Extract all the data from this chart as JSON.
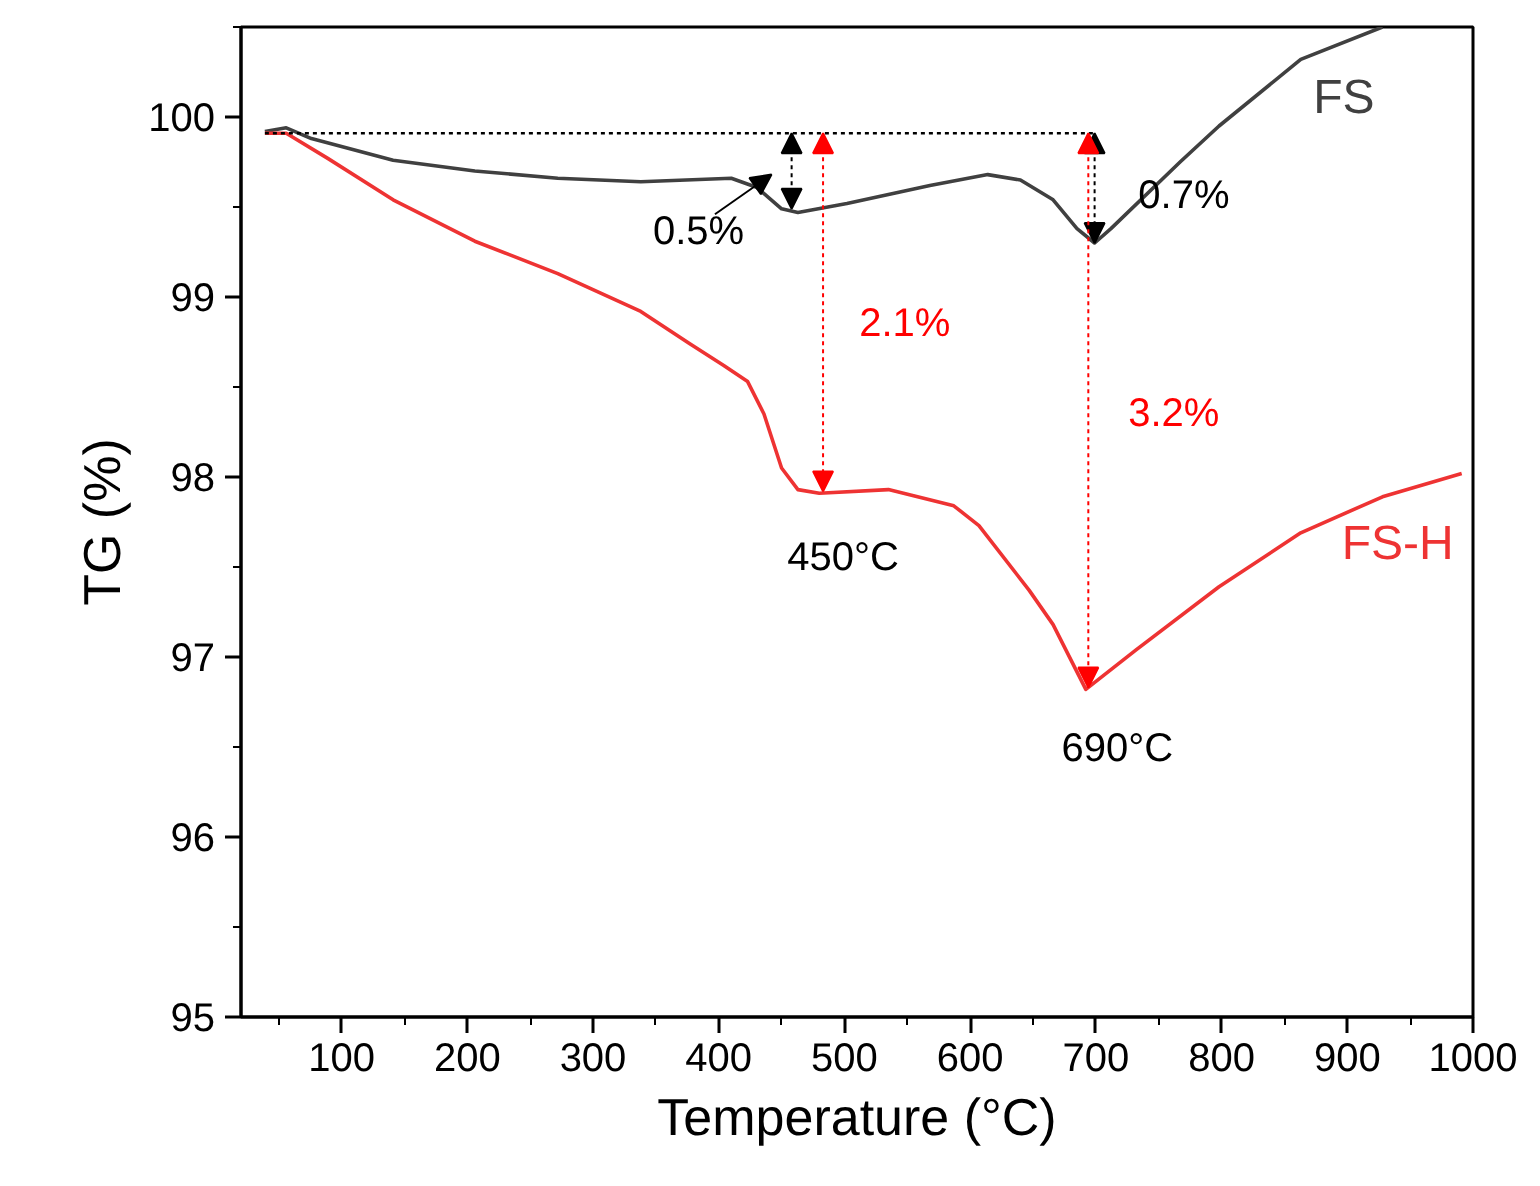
{
  "chart_data": {
    "type": "line",
    "xlabel": "Temperature (°C)",
    "ylabel": "TG (%)",
    "xlim": [
      20,
      1000
    ],
    "ylim": [
      95,
      100.5
    ],
    "xticks": [
      100,
      200,
      300,
      400,
      500,
      600,
      700,
      800,
      900,
      1000
    ],
    "yticks": [
      95,
      96,
      97,
      98,
      99,
      100
    ],
    "grid": false,
    "line_style": "solid",
    "marker": "none",
    "series": [
      {
        "name": "FS",
        "color": "#404040",
        "x": [
          39,
          56,
          76,
          141,
          206,
          272,
          338,
          410,
          430,
          450,
          463,
          502,
          568,
          614,
          640,
          666,
          685,
          699,
          712,
          767,
          798,
          863,
          928
        ],
        "values": [
          99.92,
          99.94,
          99.88,
          99.76,
          99.7,
          99.66,
          99.64,
          99.66,
          99.61,
          99.49,
          99.47,
          99.52,
          99.62,
          99.68,
          99.65,
          99.54,
          99.38,
          99.3,
          99.38,
          99.75,
          99.95,
          100.32,
          100.5
        ]
      },
      {
        "name": "FS-H",
        "color": "#ee3333",
        "x": [
          39,
          56,
          89,
          141,
          206,
          272,
          338,
          377,
          404,
          423,
          436,
          450,
          463,
          480,
          535,
          587,
          607,
          647,
          666,
          692,
          732,
          798,
          863,
          928,
          991
        ],
        "values": [
          99.91,
          99.91,
          99.77,
          99.54,
          99.31,
          99.13,
          98.92,
          98.74,
          98.62,
          98.53,
          98.35,
          98.05,
          97.93,
          97.91,
          97.93,
          97.84,
          97.73,
          97.37,
          97.18,
          96.82,
          97.04,
          97.39,
          97.69,
          97.89,
          98.02
        ]
      },
      {
        "color": "#000000",
        "line_style": "dotted",
        "x": [
          39,
          700
        ],
        "values": [
          99.91,
          99.91
        ]
      }
    ],
    "annotations": [
      "0.5%",
      "0.7%",
      "2.1%",
      "3.2%",
      "450°C",
      "690°C"
    ]
  }
}
